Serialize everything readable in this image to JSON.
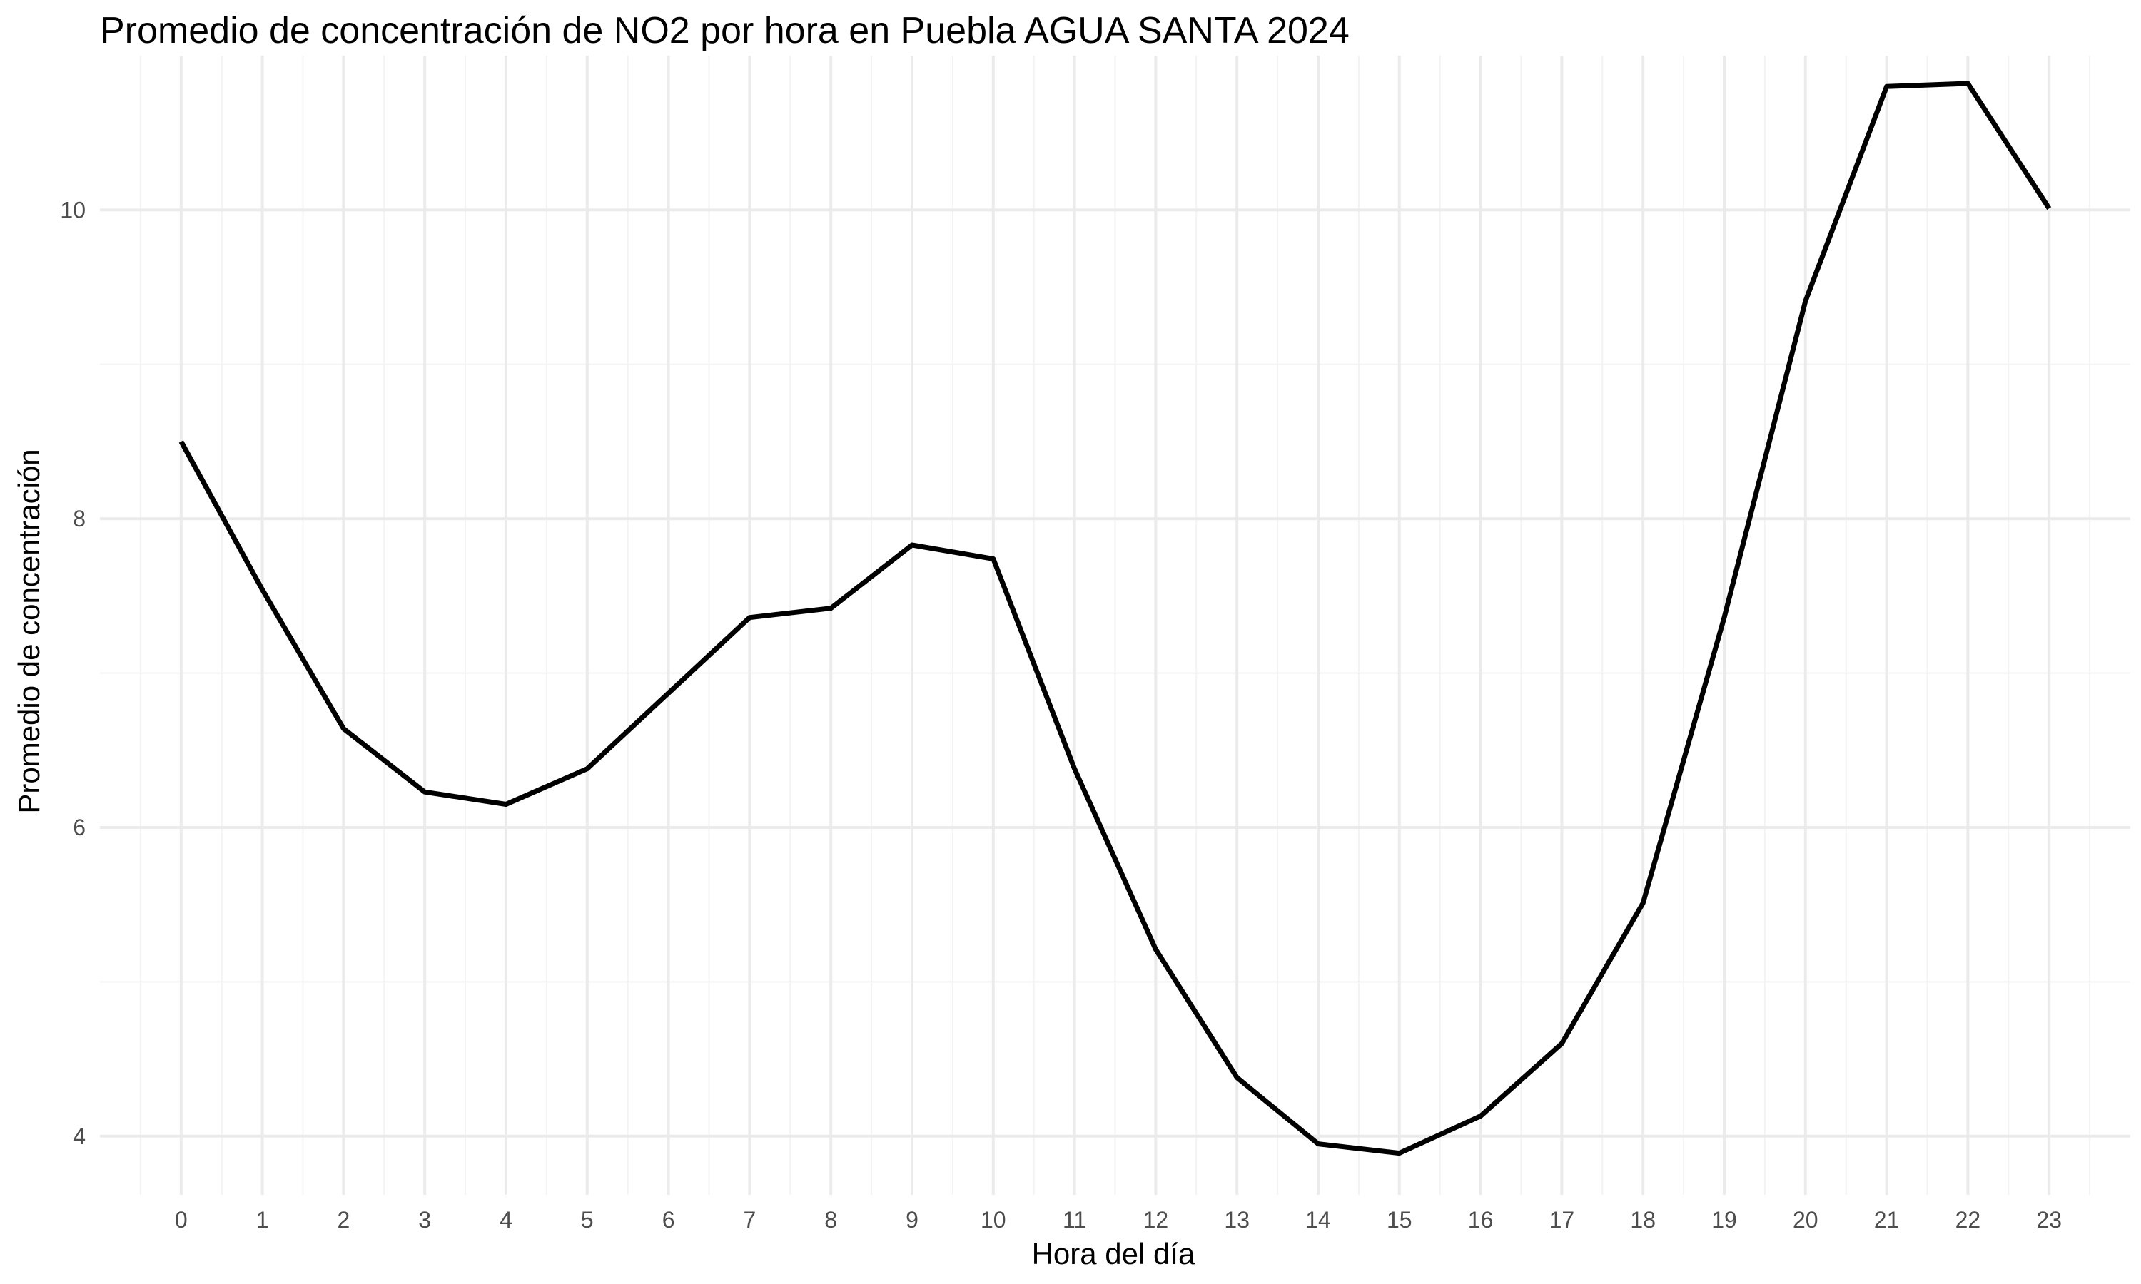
{
  "chart_data": {
    "type": "line",
    "title": "Promedio de concentración de NO2 por hora en Puebla AGUA SANTA 2024",
    "xlabel": "Hora del día",
    "ylabel": "Promedio de concentración",
    "x": [
      0,
      1,
      2,
      3,
      4,
      5,
      6,
      7,
      8,
      9,
      10,
      11,
      12,
      13,
      14,
      15,
      16,
      17,
      18,
      19,
      20,
      21,
      22,
      23
    ],
    "series": [
      {
        "values": [
          8.5,
          7.54,
          6.64,
          6.23,
          6.15,
          6.38,
          6.87,
          7.36,
          7.42,
          7.83,
          7.74,
          6.38,
          5.21,
          4.38,
          3.95,
          3.89,
          4.13,
          4.6,
          5.51,
          7.36,
          9.41,
          10.8,
          10.82,
          10.01
        ]
      }
    ],
    "y_ticks": [
      4,
      6,
      8,
      10
    ],
    "x_ticks": [
      0,
      1,
      2,
      3,
      4,
      5,
      6,
      7,
      8,
      9,
      10,
      11,
      12,
      13,
      14,
      15,
      16,
      17,
      18,
      19,
      20,
      21,
      22,
      23
    ],
    "xlim": [
      -1.0,
      24.0
    ],
    "ylim": [
      3.62,
      11.0
    ],
    "grid": true,
    "legend": "none",
    "colors": {
      "line": "#000000",
      "grid_major": "#ebebeb",
      "grid_minor": "#f3f3f3",
      "tick_text": "#4d4d4d"
    }
  }
}
